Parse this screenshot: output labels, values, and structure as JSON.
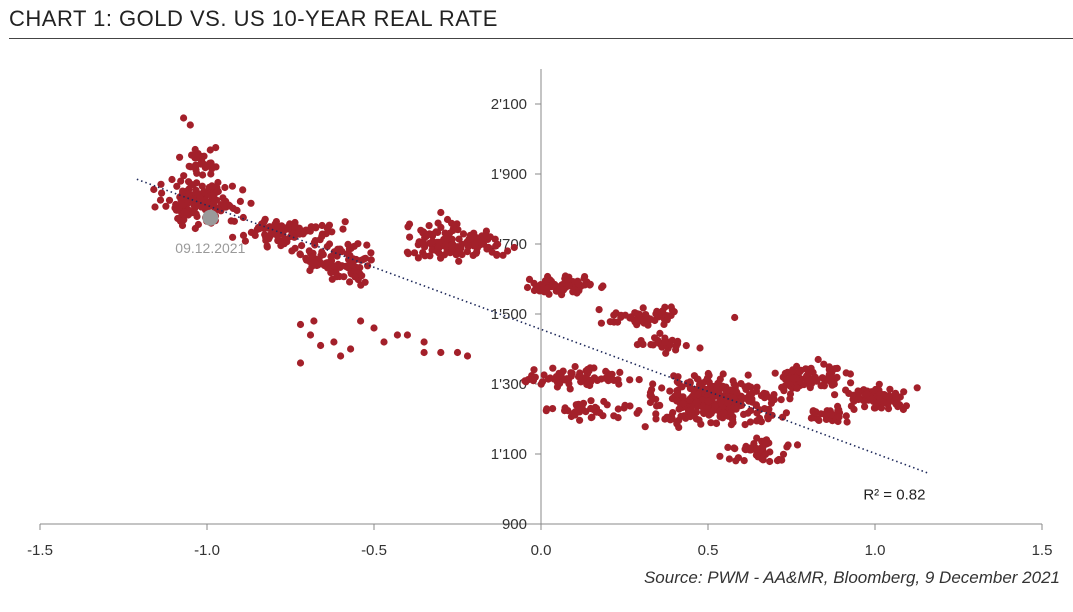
{
  "title": "CHART 1: GOLD VS. US 10-YEAR REAL RATE",
  "source": "Source: PWM - AA&MR, Bloomberg, 9 December 2021",
  "colors": {
    "points": "#a3202a",
    "highlight": "#9a9a9a",
    "trendline": "#1f2a5c",
    "axis": "#888888"
  },
  "chart_data": {
    "type": "scatter",
    "title": "CHART 1: GOLD VS. US 10-YEAR REAL RATE",
    "xlabel": "",
    "ylabel": "",
    "xlim": [
      -1.5,
      1.5
    ],
    "ylim": [
      900,
      2200
    ],
    "x_ticks": [
      -1.5,
      -1.0,
      -0.5,
      0.0,
      0.5,
      1.0,
      1.5
    ],
    "x_tick_labels": [
      "-1.5",
      "-1.0",
      "-0.5",
      "0.0",
      "0.5",
      "1.0",
      "1.5"
    ],
    "y_ticks": [
      900,
      1100,
      1300,
      1500,
      1700,
      1900,
      2100
    ],
    "y_tick_labels": [
      "900",
      "1'100",
      "1'300",
      "1'500",
      "1'700",
      "1'900",
      "2'100"
    ],
    "clusters": [
      {
        "x": [
          -1.2,
          -0.85
        ],
        "y": [
          1740,
          1900
        ],
        "n": 150
      },
      {
        "x": [
          -1.1,
          -0.95
        ],
        "y": [
          1870,
          2000
        ],
        "n": 35
      },
      {
        "x": [
          -0.95,
          -0.55
        ],
        "y": [
          1660,
          1800
        ],
        "n": 90
      },
      {
        "x": [
          -0.75,
          -0.45
        ],
        "y": [
          1570,
          1720
        ],
        "n": 90
      },
      {
        "x": [
          -0.5,
          -0.1
        ],
        "y": [
          1620,
          1780
        ],
        "n": 90
      },
      {
        "x": [
          -0.35,
          -0.05
        ],
        "y": [
          1640,
          1760
        ],
        "n": 40
      },
      {
        "x": [
          -0.1,
          0.25
        ],
        "y": [
          1540,
          1620
        ],
        "n": 60
      },
      {
        "x": [
          0.15,
          0.45
        ],
        "y": [
          1450,
          1530
        ],
        "n": 50
      },
      {
        "x": [
          0.25,
          0.5
        ],
        "y": [
          1380,
          1450
        ],
        "n": 30
      },
      {
        "x": [
          -0.1,
          0.3
        ],
        "y": [
          1280,
          1360
        ],
        "n": 70
      },
      {
        "x": [
          -0.05,
          0.35
        ],
        "y": [
          1190,
          1270
        ],
        "n": 40
      },
      {
        "x": [
          0.25,
          0.8
        ],
        "y": [
          1150,
          1350
        ],
        "n": 300
      },
      {
        "x": [
          0.5,
          0.8
        ],
        "y": [
          1060,
          1160
        ],
        "n": 45
      },
      {
        "x": [
          0.65,
          0.95
        ],
        "y": [
          1270,
          1380
        ],
        "n": 80
      },
      {
        "x": [
          0.85,
          1.17
        ],
        "y": [
          1200,
          1310
        ],
        "n": 80
      },
      {
        "x": [
          0.75,
          0.95
        ],
        "y": [
          1180,
          1240
        ],
        "n": 30
      }
    ],
    "outliers": [
      {
        "x": -1.07,
        "y": 2060
      },
      {
        "x": -1.05,
        "y": 2040
      },
      {
        "x": -0.72,
        "y": 1360
      },
      {
        "x": -0.72,
        "y": 1470
      },
      {
        "x": -0.69,
        "y": 1440
      },
      {
        "x": -0.66,
        "y": 1410
      },
      {
        "x": -0.62,
        "y": 1420
      },
      {
        "x": -0.6,
        "y": 1380
      },
      {
        "x": -0.57,
        "y": 1400
      },
      {
        "x": -0.54,
        "y": 1480
      },
      {
        "x": -0.5,
        "y": 1460
      },
      {
        "x": -0.47,
        "y": 1420
      },
      {
        "x": -0.43,
        "y": 1440
      },
      {
        "x": -0.4,
        "y": 1440
      },
      {
        "x": -0.35,
        "y": 1420
      },
      {
        "x": -0.35,
        "y": 1390
      },
      {
        "x": -0.3,
        "y": 1390
      },
      {
        "x": -0.25,
        "y": 1390
      },
      {
        "x": -0.22,
        "y": 1380
      },
      {
        "x": -0.68,
        "y": 1480
      },
      {
        "x": -0.3,
        "y": 1790
      },
      {
        "x": -0.28,
        "y": 1770
      },
      {
        "x": -0.1,
        "y": 1680
      },
      {
        "x": -0.08,
        "y": 1690
      },
      {
        "x": 0.39,
        "y": 1520
      },
      {
        "x": 0.58,
        "y": 1490
      },
      {
        "x": 0.83,
        "y": 1370
      }
    ],
    "highlight": {
      "x": -0.99,
      "y": 1775,
      "label": "09.12.2021"
    },
    "trendline": {
      "x": [
        -1.21,
        1.16
      ],
      "y": [
        1885,
        1045
      ],
      "r2_label": "R² = 0.82"
    }
  }
}
